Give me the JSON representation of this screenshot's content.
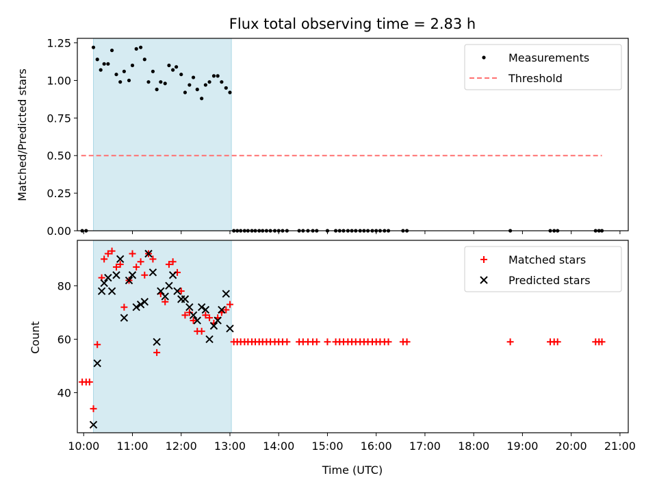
{
  "chart_data": [
    {
      "type": "scatter",
      "title": "Flux total observing time = 2.83 h",
      "xlabel": "",
      "ylabel": "Matched/Predicted stars",
      "xlim": [
        9.87,
        21.17
      ],
      "ylim": [
        0.0,
        1.28
      ],
      "yticks": [
        0.0,
        0.25,
        0.5,
        0.75,
        1.0,
        1.25
      ],
      "ytick_labels": [
        "0.00",
        "0.25",
        "0.50",
        "0.75",
        "1.00",
        "1.25"
      ],
      "xticks": [
        10,
        11,
        12,
        13,
        14,
        15,
        16,
        17,
        18,
        19,
        20,
        21
      ],
      "shaded_span": [
        10.2,
        13.03
      ],
      "legend_position": "upper right",
      "series": [
        {
          "name": "Measurements",
          "marker": "dot",
          "color": "#000000",
          "points": [
            [
              9.97,
              0.0
            ],
            [
              10.05,
              0.0
            ],
            [
              10.2,
              1.22
            ],
            [
              10.28,
              1.14
            ],
            [
              10.35,
              1.07
            ],
            [
              10.42,
              1.11
            ],
            [
              10.5,
              1.11
            ],
            [
              10.58,
              1.2
            ],
            [
              10.67,
              1.04
            ],
            [
              10.75,
              0.99
            ],
            [
              10.83,
              1.06
            ],
            [
              10.93,
              1.0
            ],
            [
              11.0,
              1.1
            ],
            [
              11.08,
              1.21
            ],
            [
              11.17,
              1.22
            ],
            [
              11.25,
              1.14
            ],
            [
              11.33,
              0.99
            ],
            [
              11.42,
              1.06
            ],
            [
              11.5,
              0.94
            ],
            [
              11.58,
              0.99
            ],
            [
              11.67,
              0.98
            ],
            [
              11.75,
              1.1
            ],
            [
              11.83,
              1.07
            ],
            [
              11.9,
              1.09
            ],
            [
              12.0,
              1.04
            ],
            [
              12.08,
              0.92
            ],
            [
              12.17,
              0.97
            ],
            [
              12.25,
              1.02
            ],
            [
              12.33,
              0.94
            ],
            [
              12.42,
              0.88
            ],
            [
              12.5,
              0.97
            ],
            [
              12.58,
              0.99
            ],
            [
              12.67,
              1.03
            ],
            [
              12.75,
              1.03
            ],
            [
              12.83,
              0.99
            ],
            [
              12.92,
              0.95
            ],
            [
              13.0,
              0.92
            ],
            [
              13.08,
              0.0
            ],
            [
              13.15,
              0.0
            ],
            [
              13.22,
              0.0
            ],
            [
              13.3,
              0.0
            ],
            [
              13.37,
              0.0
            ],
            [
              13.45,
              0.0
            ],
            [
              13.52,
              0.0
            ],
            [
              13.6,
              0.0
            ],
            [
              13.67,
              0.0
            ],
            [
              13.75,
              0.0
            ],
            [
              13.83,
              0.0
            ],
            [
              13.92,
              0.0
            ],
            [
              14.0,
              0.0
            ],
            [
              14.08,
              0.0
            ],
            [
              14.17,
              0.0
            ],
            [
              14.42,
              0.0
            ],
            [
              14.5,
              0.0
            ],
            [
              14.6,
              0.0
            ],
            [
              14.7,
              0.0
            ],
            [
              14.78,
              0.0
            ],
            [
              15.0,
              0.0
            ],
            [
              15.17,
              0.0
            ],
            [
              15.25,
              0.0
            ],
            [
              15.33,
              0.0
            ],
            [
              15.42,
              0.0
            ],
            [
              15.5,
              0.0
            ],
            [
              15.58,
              0.0
            ],
            [
              15.67,
              0.0
            ],
            [
              15.75,
              0.0
            ],
            [
              15.83,
              0.0
            ],
            [
              15.92,
              0.0
            ],
            [
              16.0,
              0.0
            ],
            [
              16.08,
              0.0
            ],
            [
              16.17,
              0.0
            ],
            [
              16.25,
              0.0
            ],
            [
              16.55,
              0.0
            ],
            [
              16.63,
              0.0
            ],
            [
              18.75,
              0.0
            ],
            [
              19.57,
              0.0
            ],
            [
              19.65,
              0.0
            ],
            [
              19.72,
              0.0
            ],
            [
              20.5,
              0.0
            ],
            [
              20.57,
              0.0
            ],
            [
              20.63,
              0.0
            ]
          ]
        },
        {
          "name": "Threshold",
          "marker": "dashed-line",
          "color": "#ff7070",
          "points": [
            [
              9.95,
              0.5
            ],
            [
              20.63,
              0.5
            ]
          ]
        }
      ]
    },
    {
      "type": "scatter",
      "title": "",
      "xlabel": "Time (UTC)",
      "ylabel": "Count",
      "xlim": [
        9.87,
        21.17
      ],
      "ylim": [
        25,
        97
      ],
      "yticks": [
        40,
        60,
        80
      ],
      "ytick_labels": [
        "40",
        "60",
        "80"
      ],
      "xticks": [
        10,
        11,
        12,
        13,
        14,
        15,
        16,
        17,
        18,
        19,
        20,
        21
      ],
      "xtick_labels": [
        "10:00",
        "11:00",
        "12:00",
        "13:00",
        "14:00",
        "15:00",
        "16:00",
        "17:00",
        "18:00",
        "19:00",
        "20:00",
        "21:00"
      ],
      "shaded_span": [
        10.2,
        13.03
      ],
      "legend_position": "upper right",
      "series": [
        {
          "name": "Matched stars",
          "marker": "plus",
          "color": "#ff0000",
          "points": [
            [
              9.97,
              44
            ],
            [
              10.05,
              44
            ],
            [
              10.12,
              44
            ],
            [
              10.2,
              34
            ],
            [
              10.28,
              58
            ],
            [
              10.37,
              83
            ],
            [
              10.42,
              90
            ],
            [
              10.5,
              92
            ],
            [
              10.58,
              93
            ],
            [
              10.67,
              87
            ],
            [
              10.75,
              88
            ],
            [
              10.83,
              72
            ],
            [
              10.93,
              82
            ],
            [
              11.0,
              92
            ],
            [
              11.08,
              87
            ],
            [
              11.17,
              89
            ],
            [
              11.25,
              84
            ],
            [
              11.33,
              92
            ],
            [
              11.42,
              90
            ],
            [
              11.5,
              55
            ],
            [
              11.58,
              77
            ],
            [
              11.67,
              74
            ],
            [
              11.75,
              88
            ],
            [
              11.83,
              89
            ],
            [
              11.92,
              85
            ],
            [
              12.0,
              78
            ],
            [
              12.08,
              69
            ],
            [
              12.17,
              70
            ],
            [
              12.25,
              67
            ],
            [
              12.33,
              63
            ],
            [
              12.42,
              63
            ],
            [
              12.5,
              69
            ],
            [
              12.58,
              68
            ],
            [
              12.67,
              66
            ],
            [
              12.75,
              68
            ],
            [
              12.83,
              70
            ],
            [
              12.92,
              71
            ],
            [
              13.0,
              73
            ],
            [
              13.08,
              59
            ],
            [
              13.15,
              59
            ],
            [
              13.22,
              59
            ],
            [
              13.3,
              59
            ],
            [
              13.37,
              59
            ],
            [
              13.45,
              59
            ],
            [
              13.52,
              59
            ],
            [
              13.6,
              59
            ],
            [
              13.67,
              59
            ],
            [
              13.75,
              59
            ],
            [
              13.83,
              59
            ],
            [
              13.92,
              59
            ],
            [
              14.0,
              59
            ],
            [
              14.08,
              59
            ],
            [
              14.17,
              59
            ],
            [
              14.42,
              59
            ],
            [
              14.5,
              59
            ],
            [
              14.6,
              59
            ],
            [
              14.7,
              59
            ],
            [
              14.78,
              59
            ],
            [
              15.0,
              59
            ],
            [
              15.17,
              59
            ],
            [
              15.25,
              59
            ],
            [
              15.33,
              59
            ],
            [
              15.42,
              59
            ],
            [
              15.5,
              59
            ],
            [
              15.58,
              59
            ],
            [
              15.67,
              59
            ],
            [
              15.75,
              59
            ],
            [
              15.83,
              59
            ],
            [
              15.92,
              59
            ],
            [
              16.0,
              59
            ],
            [
              16.08,
              59
            ],
            [
              16.17,
              59
            ],
            [
              16.25,
              59
            ],
            [
              16.55,
              59
            ],
            [
              16.63,
              59
            ],
            [
              18.75,
              59
            ],
            [
              19.57,
              59
            ],
            [
              19.65,
              59
            ],
            [
              19.72,
              59
            ],
            [
              20.5,
              59
            ],
            [
              20.57,
              59
            ],
            [
              20.63,
              59
            ]
          ]
        },
        {
          "name": "Predicted stars",
          "marker": "x",
          "color": "#000000",
          "points": [
            [
              10.2,
              28
            ],
            [
              10.28,
              51
            ],
            [
              10.37,
              78
            ],
            [
              10.42,
              81
            ],
            [
              10.5,
              83
            ],
            [
              10.58,
              78
            ],
            [
              10.67,
              84
            ],
            [
              10.75,
              90
            ],
            [
              10.83,
              68
            ],
            [
              10.93,
              82
            ],
            [
              11.0,
              84
            ],
            [
              11.08,
              72
            ],
            [
              11.17,
              73
            ],
            [
              11.25,
              74
            ],
            [
              11.33,
              92
            ],
            [
              11.42,
              85
            ],
            [
              11.5,
              59
            ],
            [
              11.58,
              78
            ],
            [
              11.67,
              76
            ],
            [
              11.75,
              80
            ],
            [
              11.83,
              84
            ],
            [
              11.92,
              78
            ],
            [
              12.0,
              75
            ],
            [
              12.08,
              75
            ],
            [
              12.17,
              72
            ],
            [
              12.25,
              69
            ],
            [
              12.33,
              67
            ],
            [
              12.42,
              72
            ],
            [
              12.5,
              71
            ],
            [
              12.58,
              60
            ],
            [
              12.67,
              65
            ],
            [
              12.75,
              67
            ],
            [
              12.83,
              71
            ],
            [
              12.92,
              77
            ],
            [
              13.0,
              64
            ]
          ]
        }
      ]
    }
  ]
}
